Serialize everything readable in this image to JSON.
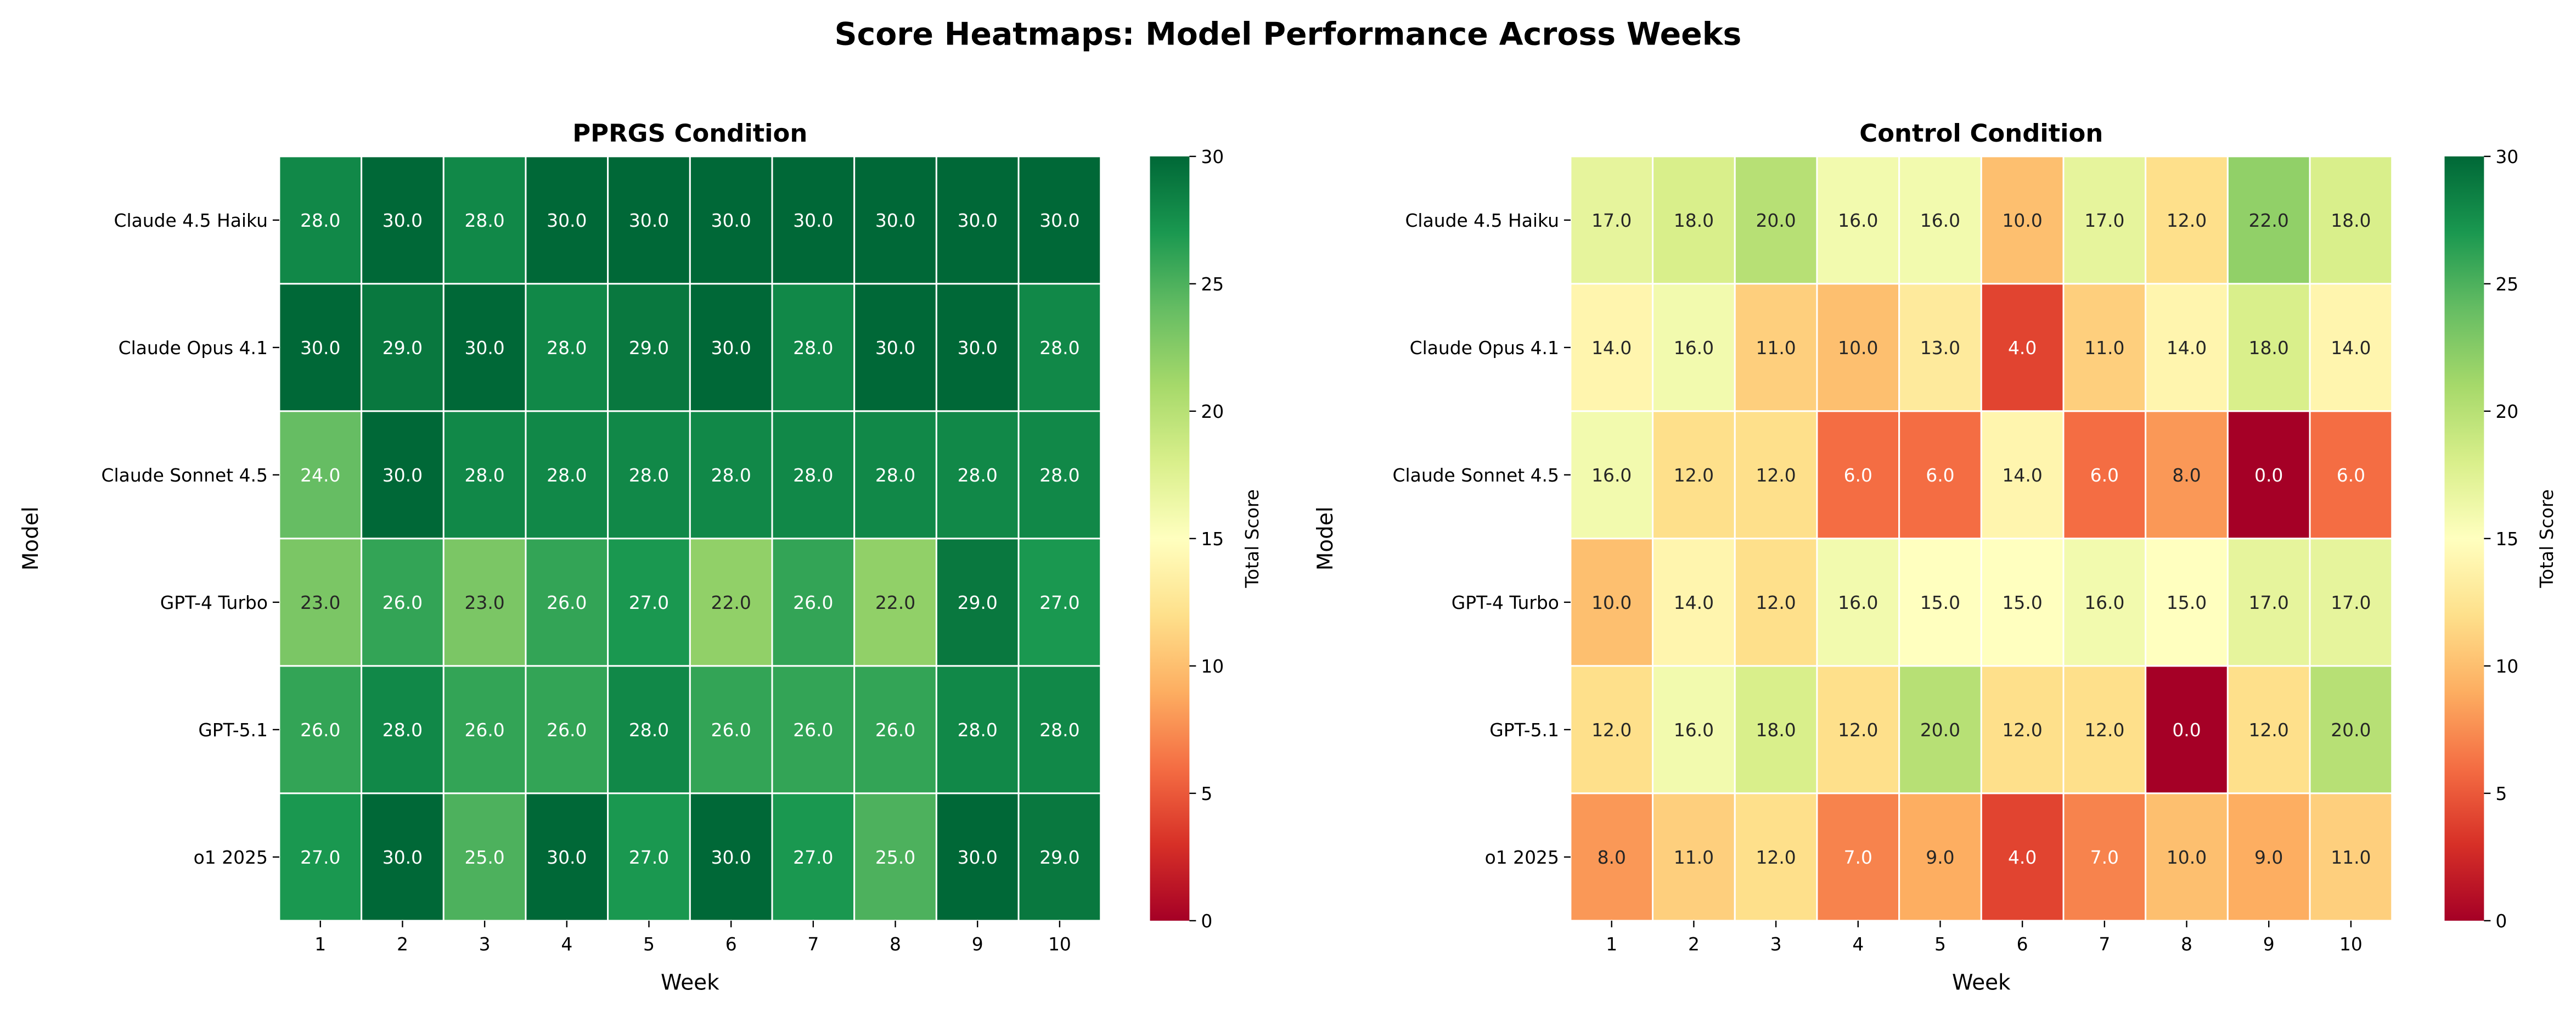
{
  "title": "Score Heatmaps: Model Performance Across Weeks",
  "chart_data": [
    {
      "type": "heatmap",
      "title": "PPRGS Condition",
      "xlabel": "Week",
      "ylabel": "Model",
      "colorbar_label": "Total Score",
      "colormap": "RdYlGn",
      "vmin": 0,
      "vmax": 30,
      "colorbar_ticks": [
        "0",
        "5",
        "10",
        "15",
        "20",
        "25",
        "30"
      ],
      "x_categories": [
        "1",
        "2",
        "3",
        "4",
        "5",
        "6",
        "7",
        "8",
        "9",
        "10"
      ],
      "y_categories": [
        "Claude 4.5 Haiku",
        "Claude Opus 4.1",
        "Claude Sonnet 4.5",
        "GPT-4 Turbo",
        "GPT-5.1",
        "o1 2025"
      ],
      "values": [
        [
          28,
          30,
          28,
          30,
          30,
          30,
          30,
          30,
          30,
          30
        ],
        [
          30,
          29,
          30,
          28,
          29,
          30,
          28,
          30,
          30,
          28
        ],
        [
          24,
          30,
          28,
          28,
          28,
          28,
          28,
          28,
          28,
          28
        ],
        [
          23,
          26,
          23,
          26,
          27,
          22,
          26,
          22,
          29,
          27
        ],
        [
          26,
          28,
          26,
          26,
          28,
          26,
          26,
          26,
          28,
          28
        ],
        [
          27,
          30,
          25,
          30,
          27,
          30,
          27,
          25,
          30,
          29
        ]
      ]
    },
    {
      "type": "heatmap",
      "title": "Control Condition",
      "xlabel": "Week",
      "ylabel": "Model",
      "colorbar_label": "Total Score",
      "colormap": "RdYlGn",
      "vmin": 0,
      "vmax": 30,
      "colorbar_ticks": [
        "0",
        "5",
        "10",
        "15",
        "20",
        "25",
        "30"
      ],
      "x_categories": [
        "1",
        "2",
        "3",
        "4",
        "5",
        "6",
        "7",
        "8",
        "9",
        "10"
      ],
      "y_categories": [
        "Claude 4.5 Haiku",
        "Claude Opus 4.1",
        "Claude Sonnet 4.5",
        "GPT-4 Turbo",
        "GPT-5.1",
        "o1 2025"
      ],
      "values": [
        [
          17,
          18,
          20,
          16,
          16,
          10,
          17,
          12,
          22,
          18
        ],
        [
          14,
          16,
          11,
          10,
          13,
          4,
          11,
          14,
          18,
          14
        ],
        [
          16,
          12,
          12,
          6,
          6,
          14,
          6,
          8,
          0,
          6
        ],
        [
          10,
          14,
          12,
          16,
          15,
          15,
          16,
          15,
          17,
          17
        ],
        [
          12,
          16,
          18,
          12,
          20,
          12,
          12,
          0,
          12,
          20
        ],
        [
          8,
          11,
          12,
          7,
          9,
          4,
          7,
          10,
          9,
          11
        ]
      ]
    }
  ]
}
